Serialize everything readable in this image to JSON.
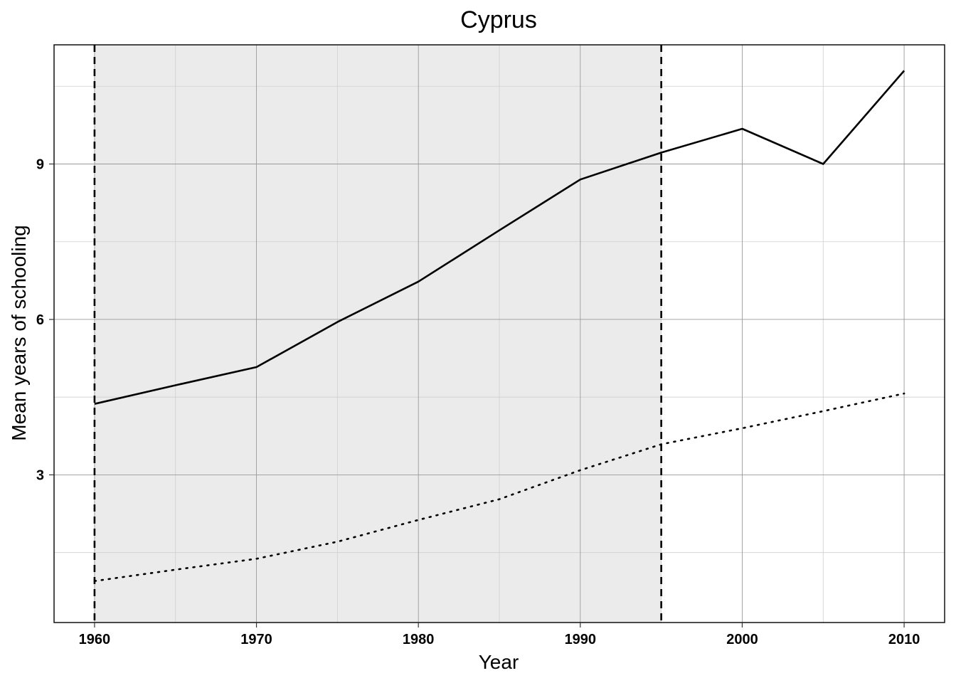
{
  "chart_data": {
    "type": "line",
    "title": "Cyprus",
    "xlabel": "Year",
    "ylabel": "Mean years of schooling",
    "xlim": [
      1957.5,
      2012.5
    ],
    "ylim": [
      0.15,
      11.3
    ],
    "x_ticks": [
      1960,
      1970,
      1980,
      1990,
      2000,
      2010
    ],
    "y_ticks": [
      3,
      6,
      9
    ],
    "grid": true,
    "legend": "none",
    "shaded_interval": [
      1960,
      1995
    ],
    "vlines": [
      1960,
      1995
    ],
    "series": [
      {
        "style": "solid",
        "x": [
          1960,
          1965,
          1970,
          1975,
          1980,
          1985,
          1990,
          1995,
          2000,
          2005,
          2010
        ],
        "y": [
          4.37,
          4.73,
          5.08,
          5.95,
          6.73,
          7.72,
          8.7,
          9.22,
          9.68,
          9.0,
          10.8
        ]
      },
      {
        "style": "dotted",
        "x": [
          1960,
          1965,
          1970,
          1975,
          1980,
          1985,
          1990,
          1995,
          2000,
          2005,
          2010
        ],
        "y": [
          0.95,
          1.17,
          1.38,
          1.71,
          2.13,
          2.53,
          3.09,
          3.59,
          3.9,
          4.23,
          4.57
        ]
      }
    ],
    "colors": {
      "shade": "#ebebeb",
      "line": "#000000",
      "grid_major": "#9a9a9a",
      "grid_minor": "#cfcfcf"
    }
  }
}
